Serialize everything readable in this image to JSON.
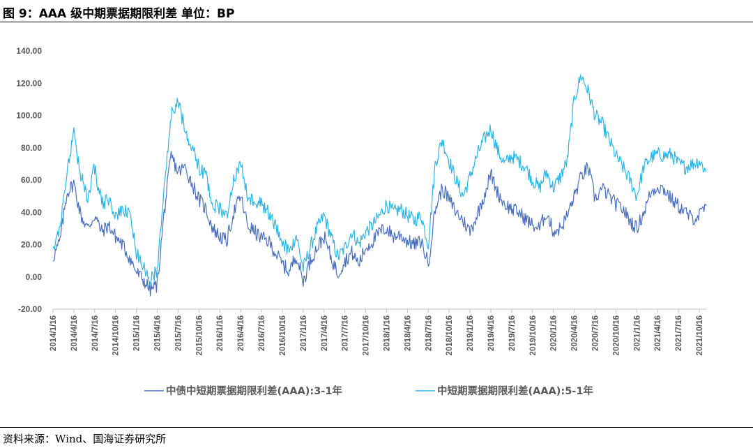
{
  "header": {
    "title": "图 9：AAA 级中期票据期限利差    单位：BP"
  },
  "footer": {
    "source": "资料来源：Wind、国海证券研究所"
  },
  "colors": {
    "series1": "#4a6fbe",
    "series2": "#29b6e6",
    "axis": "#bfbfbf",
    "text": "#595959"
  },
  "chart_data": {
    "type": "line",
    "title": "",
    "xlabel": "",
    "ylabel": "",
    "ylim": [
      -20,
      140
    ],
    "yticks": [
      "-20.00",
      "0.00",
      "20.00",
      "40.00",
      "60.00",
      "80.00",
      "100.00",
      "120.00",
      "140.00"
    ],
    "xticks": [
      "2014/1/16",
      "2014/4/16",
      "2014/7/16",
      "2014/10/16",
      "2015/1/16",
      "2015/4/16",
      "2015/7/16",
      "2015/10/16",
      "2016/1/16",
      "2016/4/16",
      "2016/7/16",
      "2016/10/16",
      "2017/1/16",
      "2017/4/16",
      "2017/7/16",
      "2017/10/16",
      "2018/1/16",
      "2018/4/16",
      "2018/7/16",
      "2018/10/16",
      "2019/1/16",
      "2019/4/16",
      "2019/7/16",
      "2019/10/16",
      "2020/1/16",
      "2020/4/16",
      "2020/7/16",
      "2020/10/16",
      "2021/1/16",
      "2021/4/16",
      "2021/7/16",
      "2021/10/16"
    ],
    "grid": false,
    "legend_position": "bottom",
    "x": [
      "2014/1/16",
      "2014/2/16",
      "2014/3/16",
      "2014/4/16",
      "2014/5/16",
      "2014/6/16",
      "2014/7/16",
      "2014/8/16",
      "2014/9/16",
      "2014/10/16",
      "2014/11/16",
      "2014/12/16",
      "2015/1/16",
      "2015/2/16",
      "2015/3/16",
      "2015/4/16",
      "2015/5/16",
      "2015/6/16",
      "2015/7/16",
      "2015/8/16",
      "2015/9/16",
      "2015/10/16",
      "2015/11/16",
      "2015/12/16",
      "2016/1/16",
      "2016/2/16",
      "2016/3/16",
      "2016/4/16",
      "2016/5/16",
      "2016/6/16",
      "2016/7/16",
      "2016/8/16",
      "2016/9/16",
      "2016/10/16",
      "2016/11/16",
      "2016/12/16",
      "2017/1/16",
      "2017/2/16",
      "2017/3/16",
      "2017/4/16",
      "2017/5/16",
      "2017/6/16",
      "2017/7/16",
      "2017/8/16",
      "2017/9/16",
      "2017/10/16",
      "2017/11/16",
      "2017/12/16",
      "2018/1/16",
      "2018/2/16",
      "2018/3/16",
      "2018/4/16",
      "2018/5/16",
      "2018/6/16",
      "2018/7/16",
      "2018/8/16",
      "2018/9/16",
      "2018/10/16",
      "2018/11/16",
      "2018/12/16",
      "2019/1/16",
      "2019/2/16",
      "2019/3/16",
      "2019/4/16",
      "2019/5/16",
      "2019/6/16",
      "2019/7/16",
      "2019/8/16",
      "2019/9/16",
      "2019/10/16",
      "2019/11/16",
      "2019/12/16",
      "2020/1/16",
      "2020/2/16",
      "2020/3/16",
      "2020/4/16",
      "2020/5/16",
      "2020/6/16",
      "2020/7/16",
      "2020/8/16",
      "2020/9/16",
      "2020/10/16",
      "2020/11/16",
      "2020/12/16",
      "2021/1/16",
      "2021/2/16",
      "2021/3/16",
      "2021/4/16",
      "2021/5/16",
      "2021/6/16",
      "2021/7/16",
      "2021/8/16",
      "2021/9/16",
      "2021/10/16",
      "2021/11/16"
    ],
    "series": [
      {
        "name": "中债中短期票据期限利差(AAA):3-1年",
        "color": "#4a6fbe",
        "values": [
          12,
          22,
          52,
          58,
          38,
          30,
          38,
          28,
          32,
          25,
          20,
          12,
          3,
          -2,
          -8,
          -5,
          40,
          75,
          65,
          68,
          58,
          48,
          42,
          30,
          25,
          22,
          40,
          50,
          32,
          28,
          24,
          22,
          15,
          8,
          3,
          14,
          -3,
          10,
          18,
          25,
          12,
          2,
          10,
          15,
          8,
          18,
          22,
          28,
          30,
          25,
          26,
          22,
          20,
          22,
          8,
          42,
          55,
          48,
          40,
          35,
          28,
          38,
          50,
          64,
          52,
          45,
          42,
          40,
          36,
          32,
          30,
          40,
          28,
          30,
          38,
          50,
          62,
          68,
          48,
          55,
          50,
          45,
          42,
          35,
          30,
          40,
          52,
          56,
          54,
          48,
          44,
          40,
          36,
          38,
          44
        ]
      },
      {
        "name": "中短期票据期限利差(AAA):5-1年",
        "color": "#29b6e6",
        "values": [
          18,
          30,
          65,
          88,
          62,
          50,
          68,
          45,
          48,
          38,
          40,
          40,
          15,
          8,
          -3,
          5,
          58,
          100,
          108,
          92,
          80,
          68,
          62,
          45,
          42,
          38,
          60,
          70,
          50,
          48,
          45,
          40,
          32,
          22,
          15,
          26,
          5,
          18,
          30,
          38,
          25,
          12,
          18,
          28,
          20,
          28,
          32,
          38,
          45,
          40,
          42,
          38,
          35,
          38,
          20,
          70,
          85,
          72,
          60,
          50,
          62,
          75,
          85,
          92,
          78,
          70,
          75,
          72,
          68,
          60,
          55,
          65,
          55,
          62,
          72,
          110,
          125,
          115,
          100,
          95,
          85,
          75,
          68,
          60,
          50,
          68,
          74,
          76,
          75,
          76,
          70,
          68,
          70,
          72,
          65
        ]
      }
    ]
  }
}
